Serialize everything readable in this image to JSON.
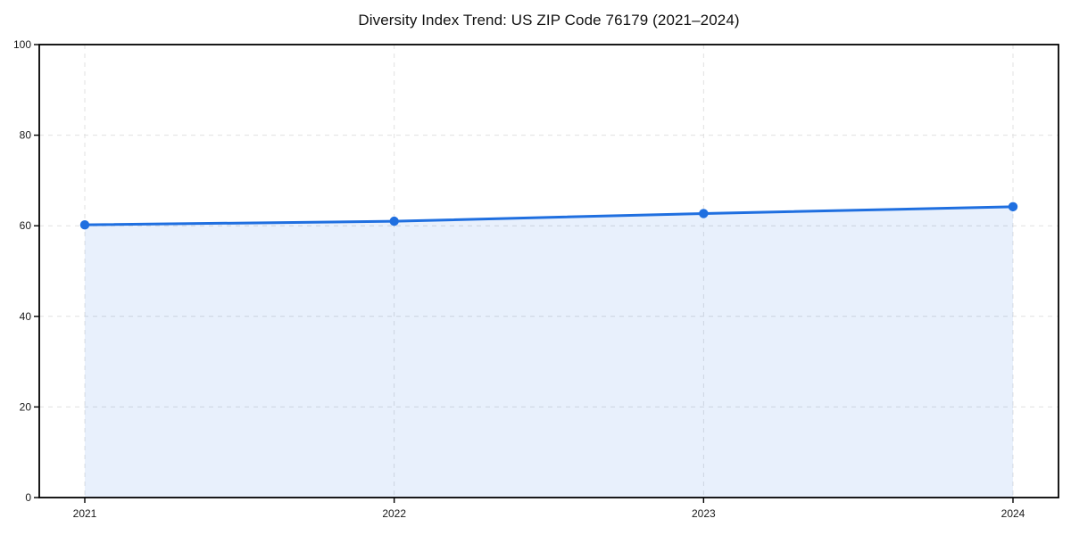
{
  "chart_data": {
    "type": "line",
    "title": "Diversity Index Trend: US ZIP Code 76179 (2021–2024)",
    "x": [
      "2021",
      "2022",
      "2023",
      "2024"
    ],
    "values": [
      60.2,
      61.0,
      62.7,
      64.2
    ],
    "xlabel": "",
    "ylabel": "",
    "ylim": [
      0,
      100
    ],
    "yticks": [
      0,
      20,
      40,
      60,
      80,
      100
    ],
    "grid": true,
    "grid_style": "dashed",
    "legend": "none",
    "area_fill": true,
    "marker": "circle",
    "line_color": "#1f6fe0",
    "fill_opacity": 0.1,
    "grid_color": "#e0e0e0",
    "axis_color": "#000000",
    "tick_label_color": "#1a1a1a"
  }
}
